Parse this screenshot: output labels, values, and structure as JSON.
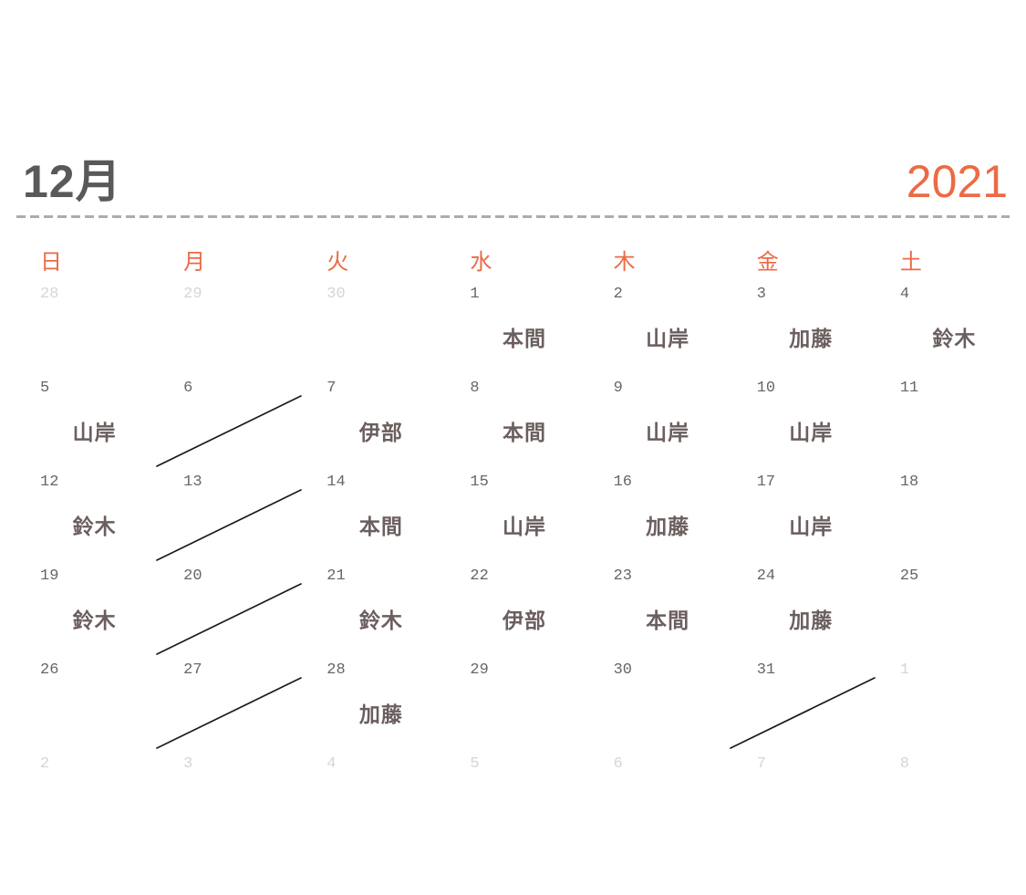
{
  "header": {
    "month_label": "12月",
    "year_label": "2021"
  },
  "colors": {
    "accent_orange": "#EC6A45",
    "title_gray": "#595959",
    "divider_mauve": "#B3A8AC",
    "current_date_gray": "#6E6363",
    "other_month_date_gray": "#D8D4D4",
    "staff_name_brown": "#6B5E5E",
    "cross_line_black": "#1B1B1B"
  },
  "calendar": {
    "weekdays": [
      "日",
      "月",
      "火",
      "水",
      "木",
      "金",
      "土"
    ],
    "weeks": [
      [
        {
          "date": "28",
          "other_month": true
        },
        {
          "date": "29",
          "other_month": true
        },
        {
          "date": "30",
          "other_month": true
        },
        {
          "date": "1",
          "name": "本間"
        },
        {
          "date": "2",
          "name": "山岸"
        },
        {
          "date": "3",
          "name": "加藤"
        },
        {
          "date": "4",
          "name": "鈴木"
        }
      ],
      [
        {
          "date": "5",
          "name": "山岸"
        },
        {
          "date": "6",
          "crossed": true
        },
        {
          "date": "7",
          "name": "伊部"
        },
        {
          "date": "8",
          "name": "本間"
        },
        {
          "date": "9",
          "name": "山岸"
        },
        {
          "date": "10",
          "name": "山岸"
        },
        {
          "date": "11"
        }
      ],
      [
        {
          "date": "12",
          "name": "鈴木"
        },
        {
          "date": "13",
          "crossed": true
        },
        {
          "date": "14",
          "name": "本間"
        },
        {
          "date": "15",
          "name": "山岸"
        },
        {
          "date": "16",
          "name": "加藤"
        },
        {
          "date": "17",
          "name": "山岸"
        },
        {
          "date": "18"
        }
      ],
      [
        {
          "date": "19",
          "name": "鈴木"
        },
        {
          "date": "20",
          "crossed": true
        },
        {
          "date": "21",
          "name": "鈴木"
        },
        {
          "date": "22",
          "name": "伊部"
        },
        {
          "date": "23",
          "name": "本間"
        },
        {
          "date": "24",
          "name": "加藤"
        },
        {
          "date": "25"
        }
      ],
      [
        {
          "date": "26"
        },
        {
          "date": "27",
          "crossed": true
        },
        {
          "date": "28",
          "name": "加藤"
        },
        {
          "date": "29"
        },
        {
          "date": "30"
        },
        {
          "date": "31",
          "crossed": true
        },
        {
          "date": "1",
          "other_month": true
        }
      ],
      [
        {
          "date": "2",
          "other_month": true
        },
        {
          "date": "3",
          "other_month": true
        },
        {
          "date": "4",
          "other_month": true
        },
        {
          "date": "5",
          "other_month": true
        },
        {
          "date": "6",
          "other_month": true
        },
        {
          "date": "7",
          "other_month": true
        },
        {
          "date": "8",
          "other_month": true
        }
      ]
    ]
  }
}
